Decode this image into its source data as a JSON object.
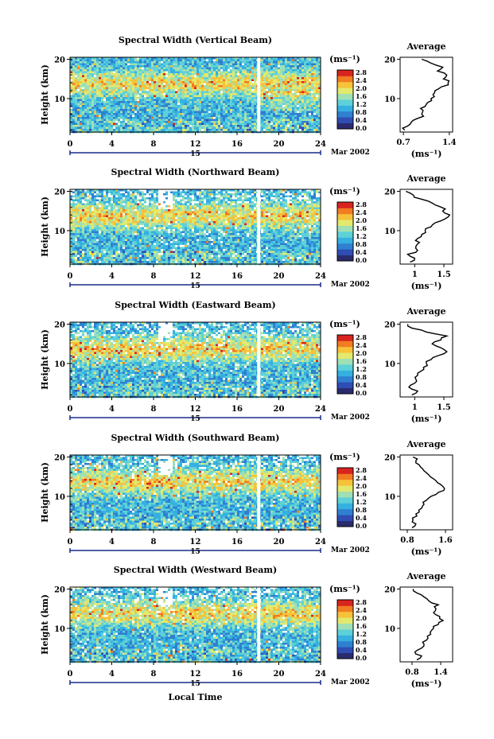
{
  "figure": {
    "x_axis_label": "Local Time",
    "date_label": "Mar 2002",
    "day_label": "15",
    "average_title": "Average",
    "height_label": "Height (km)",
    "unit_label": "(ms⁻¹)"
  },
  "colorbar": {
    "ticks": [
      "0.0",
      "0.4",
      "0.8",
      "1.2",
      "1.6",
      "2.0",
      "2.4",
      "2.8"
    ],
    "colors": [
      "#2a2b6e",
      "#2f4db3",
      "#2f80d0",
      "#35b0e0",
      "#5ed1d8",
      "#9fe0b5",
      "#e3e96d",
      "#f6c23a",
      "#f17c22",
      "#d8241f"
    ]
  },
  "chart_data": [
    {
      "type": "heatmap",
      "title": "Spectral Width (Vertical Beam)",
      "xlabel": "Local Time",
      "ylabel": "Height (km)",
      "xlim": [
        0,
        24
      ],
      "ylim": [
        1.5,
        20.5
      ],
      "xticks": [
        0,
        4,
        8,
        12,
        16,
        20,
        24
      ],
      "yticks": [
        10,
        20
      ],
      "gap_hour": 18.0,
      "avg_profile": {
        "title": "Average",
        "xlabel": "(ms⁻¹)",
        "xlim": [
          0.65,
          1.45
        ],
        "xticks": [
          0.7,
          1.4
        ],
        "height": [
          2,
          3,
          4,
          5,
          6,
          7,
          8,
          9,
          10,
          11,
          12,
          13,
          14,
          15,
          16,
          17,
          18,
          19,
          20
        ],
        "width": [
          0.72,
          0.76,
          0.82,
          0.92,
          0.98,
          1.0,
          1.03,
          1.07,
          1.12,
          1.15,
          1.18,
          1.28,
          1.38,
          1.31,
          1.36,
          1.22,
          1.3,
          1.12,
          0.98
        ]
      }
    },
    {
      "type": "heatmap",
      "title": "Spectral Width (Northward Beam)",
      "xlabel": "Local Time",
      "ylabel": "Height (km)",
      "xlim": [
        0,
        24
      ],
      "ylim": [
        1.5,
        20.5
      ],
      "xticks": [
        0,
        4,
        8,
        12,
        16,
        20,
        24
      ],
      "yticks": [
        10,
        20
      ],
      "gap_hour": 18.0,
      "avg_profile": {
        "title": "Average",
        "xlabel": "(ms⁻¹)",
        "xlim": [
          0.75,
          1.65
        ],
        "xticks": [
          1.0,
          1.5
        ],
        "height": [
          2,
          3,
          4,
          5,
          6,
          7,
          8,
          9,
          10,
          11,
          12,
          13,
          14,
          15,
          16,
          17,
          18,
          19,
          20
        ],
        "width": [
          0.92,
          1.0,
          0.88,
          1.05,
          1.02,
          1.08,
          1.05,
          1.12,
          1.18,
          1.28,
          1.35,
          1.52,
          1.6,
          1.48,
          1.45,
          1.3,
          1.12,
          0.98,
          0.85
        ]
      }
    },
    {
      "type": "heatmap",
      "title": "Spectral Width (Eastward Beam)",
      "xlabel": "Local Time",
      "ylabel": "Height (km)",
      "xlim": [
        0,
        24
      ],
      "ylim": [
        1.5,
        20.5
      ],
      "xticks": [
        0,
        4,
        8,
        12,
        16,
        20,
        24
      ],
      "yticks": [
        10,
        20
      ],
      "gap_hour": 18.0,
      "avg_profile": {
        "title": "Average",
        "xlabel": "(ms⁻¹)",
        "xlim": [
          0.75,
          1.65
        ],
        "xticks": [
          1.0,
          1.5
        ],
        "height": [
          2,
          3,
          4,
          5,
          6,
          7,
          8,
          9,
          10,
          11,
          12,
          13,
          14,
          15,
          16,
          17,
          18,
          19,
          20
        ],
        "width": [
          0.95,
          1.05,
          0.9,
          1.0,
          1.02,
          1.05,
          1.1,
          1.15,
          1.2,
          1.28,
          1.4,
          1.55,
          1.45,
          1.3,
          1.45,
          1.55,
          1.2,
          0.95,
          0.88
        ]
      }
    },
    {
      "type": "heatmap",
      "title": "Spectral Width (Southward Beam)",
      "xlabel": "Local Time",
      "ylabel": "Height (km)",
      "xlim": [
        0,
        24
      ],
      "ylim": [
        1.5,
        20.5
      ],
      "xticks": [
        0,
        4,
        8,
        12,
        16,
        20,
        24
      ],
      "yticks": [
        10,
        20
      ],
      "gap_hour": 18.0,
      "avg_profile": {
        "title": "Average",
        "xlabel": "(ms⁻¹)",
        "xlim": [
          0.65,
          1.75
        ],
        "xticks": [
          0.8,
          1.6
        ],
        "height": [
          2,
          3,
          4,
          5,
          6,
          7,
          8,
          9,
          10,
          11,
          12,
          13,
          14,
          15,
          16,
          17,
          18,
          19,
          20
        ],
        "width": [
          0.9,
          0.98,
          0.92,
          1.0,
          1.05,
          1.1,
          1.15,
          1.2,
          1.3,
          1.45,
          1.58,
          1.5,
          1.4,
          1.28,
          1.2,
          1.12,
          1.05,
          0.98,
          0.92
        ]
      }
    },
    {
      "type": "heatmap",
      "title": "Spectral Width (Westward Beam)",
      "xlabel": "Local Time",
      "ylabel": "Height (km)",
      "xlim": [
        0,
        24
      ],
      "ylim": [
        1.5,
        20.5
      ],
      "xticks": [
        0,
        4,
        8,
        12,
        16,
        20,
        24
      ],
      "yticks": [
        10,
        20
      ],
      "gap_hour": 18.0,
      "avg_profile": {
        "title": "Average",
        "xlabel": "(ms⁻¹)",
        "xlim": [
          0.55,
          1.65
        ],
        "xticks": [
          0.8,
          1.4
        ],
        "height": [
          2,
          3,
          4,
          5,
          6,
          7,
          8,
          9,
          10,
          11,
          12,
          13,
          14,
          15,
          16,
          17,
          18,
          19,
          20
        ],
        "width": [
          0.9,
          1.0,
          0.86,
          1.0,
          1.05,
          1.1,
          1.12,
          1.18,
          1.25,
          1.35,
          1.45,
          1.38,
          1.25,
          1.3,
          1.35,
          1.15,
          1.05,
          0.9,
          0.82
        ]
      }
    }
  ]
}
